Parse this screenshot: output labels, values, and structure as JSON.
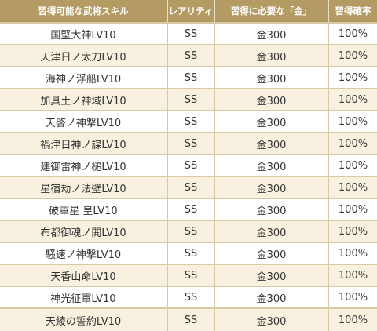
{
  "table": {
    "headers": [
      "習得可能な武将スキル",
      "レアリティ",
      "習得に必要な「金」",
      "習得確率"
    ],
    "rows": [
      [
        "国堅大神LV10",
        "SS",
        "金300",
        "100%"
      ],
      [
        "天津日ノ太刀LV10",
        "SS",
        "金300",
        "100%"
      ],
      [
        "海神ノ浮船LV10",
        "SS",
        "金300",
        "100%"
      ],
      [
        "加具土ノ神域LV10",
        "SS",
        "金300",
        "100%"
      ],
      [
        "天啓ノ神撃LV10",
        "SS",
        "金300",
        "100%"
      ],
      [
        "禍津日神ノ謀LV10",
        "SS",
        "金300",
        "100%"
      ],
      [
        "建御雷神ノ槌LV10",
        "SS",
        "金300",
        "100%"
      ],
      [
        "星宿劫ノ法壁LV10",
        "SS",
        "金300",
        "100%"
      ],
      [
        "破軍星 皇LV10",
        "SS",
        "金300",
        "100%"
      ],
      [
        "布都御魂ノ閧LV10",
        "SS",
        "金300",
        "100%"
      ],
      [
        "騒速ノ神撃LV10",
        "SS",
        "金300",
        "100%"
      ],
      [
        "天香山命LV10",
        "SS",
        "金300",
        "100%"
      ],
      [
        "神光征軍LV10",
        "SS",
        "金300",
        "100%"
      ],
      [
        "天綾の誓約LV10",
        "SS",
        "金300",
        "100%"
      ]
    ]
  },
  "colors": {
    "header_bg": "#b49a63",
    "row_alt_bg": "#f8f1df",
    "border": "#d8c8a4"
  }
}
